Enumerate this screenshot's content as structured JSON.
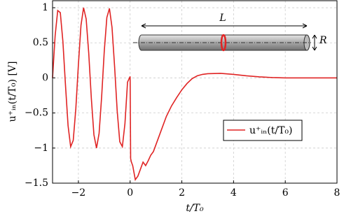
{
  "chart_data": {
    "type": "line",
    "xlabel": "t/T₀",
    "ylabel": "u⁺ᵢₙ(t/T₀) [V]",
    "annotations": [
      "L",
      "R"
    ],
    "x": [
      -3.0,
      -2.9,
      -2.8,
      -2.7,
      -2.6,
      -2.5,
      -2.4,
      -2.3,
      -2.2,
      -2.1,
      -2.0,
      -1.9,
      -1.8,
      -1.7,
      -1.6,
      -1.5,
      -1.4,
      -1.3,
      -1.2,
      -1.1,
      -1.0,
      -0.9,
      -0.8,
      -0.7,
      -0.6,
      -0.5,
      -0.4,
      -0.3,
      -0.2,
      -0.1,
      0.0,
      0.02,
      0.05,
      0.1,
      0.15,
      0.2,
      0.3,
      0.4,
      0.5,
      0.6,
      0.7,
      0.8,
      0.9,
      1.0,
      1.2,
      1.4,
      1.6,
      1.8,
      2.0,
      2.2,
      2.4,
      2.6,
      2.8,
      3.0,
      3.5,
      4.0,
      4.5,
      5.0,
      5.5,
      6.0,
      7.0,
      8.0
    ],
    "series": [
      {
        "name": "u⁺ᵢₙ(t/T₀)",
        "color": "#e02424",
        "values": [
          0,
          0.6,
          0.96,
          0.93,
          0.52,
          -0.1,
          -0.68,
          -0.98,
          -0.89,
          -0.44,
          0.19,
          0.75,
          1.0,
          0.84,
          0.35,
          -0.29,
          -0.81,
          -1.0,
          -0.79,
          -0.26,
          0.38,
          0.86,
          0.99,
          0.72,
          0.16,
          -0.47,
          -0.91,
          -0.98,
          -0.65,
          -0.06,
          0.02,
          -1.15,
          -1.2,
          -1.25,
          -1.35,
          -1.45,
          -1.4,
          -1.3,
          -1.2,
          -1.25,
          -1.18,
          -1.1,
          -1.05,
          -0.95,
          -0.75,
          -0.55,
          -0.4,
          -0.28,
          -0.17,
          -0.08,
          -0.01,
          0.03,
          0.05,
          0.06,
          0.065,
          0.05,
          0.03,
          0.015,
          0.005,
          0,
          0,
          0
        ]
      }
    ],
    "xlim": [
      -3,
      8
    ],
    "ylim": [
      -1.5,
      1.1
    ],
    "xticks": [
      {
        "value": -2,
        "label": "−2"
      },
      0,
      2,
      4,
      6,
      8
    ],
    "yticks": [
      {
        "value": -1.5,
        "label": "−1.5"
      },
      {
        "value": -1,
        "label": "−1"
      },
      {
        "value": -0.5,
        "label": "−0.5"
      },
      0,
      0.5,
      1
    ],
    "grid": true
  }
}
